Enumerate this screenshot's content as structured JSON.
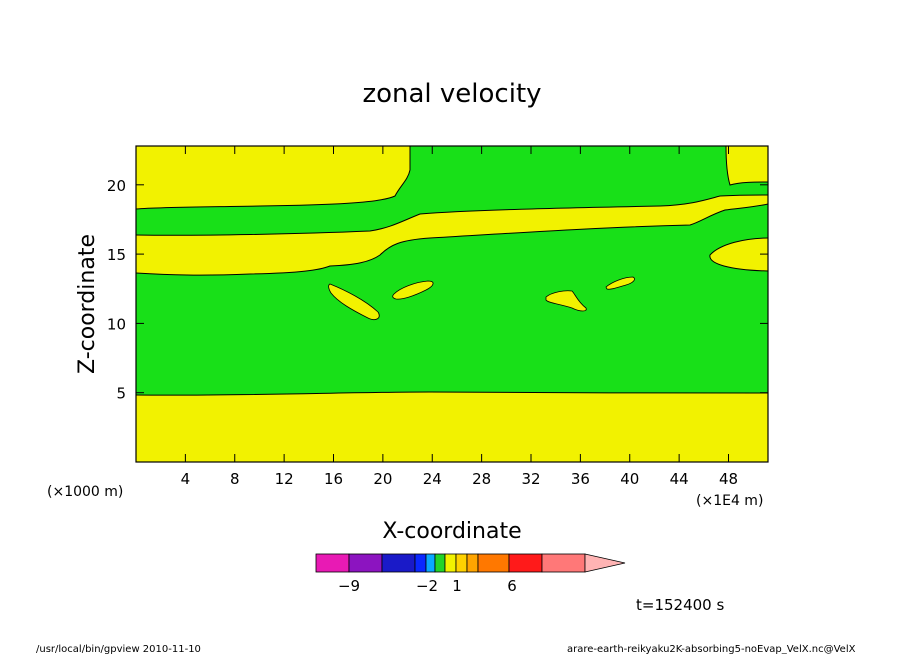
{
  "chart_data": {
    "type": "heatmap",
    "title": "zonal velocity",
    "xlabel": "X-coordinate",
    "ylabel": "Z-coordinate",
    "x_unit_left": "(×1000 m)",
    "x_unit_right": "(×1E4 m)",
    "x_ticks": [
      4,
      8,
      12,
      16,
      20,
      24,
      28,
      32,
      36,
      40,
      44,
      48
    ],
    "y_ticks": [
      5,
      10,
      15,
      20
    ],
    "xlim": [
      0,
      51.2
    ],
    "ylim": [
      0,
      22.8
    ],
    "colorbar": {
      "ticks": [
        {
          "value": "-9",
          "label": "−9"
        },
        {
          "value": "-2",
          "label": "−2"
        },
        {
          "value": "1",
          "label": "1"
        },
        {
          "value": "6",
          "label": "6"
        }
      ],
      "colors": [
        "#e81ab4",
        "#8c14c0",
        "#1a1ac8",
        "#0a28ff",
        "#0aa8ff",
        "#22d428",
        "#f2f200",
        "#ffd200",
        "#ffa500",
        "#ff7800",
        "#ff1a1a",
        "#ff7878",
        "#ffb4b4"
      ]
    },
    "fill_colors": {
      "positive_band": "#f2f200",
      "background": "#18e018"
    },
    "time_label": "t=152400 s",
    "footer_left": "/usr/local/bin/gpview  2010-11-10",
    "footer_right": "arare-earth-reikyaku2K-absorbing5-noEvap_VelX.nc@VelX"
  }
}
